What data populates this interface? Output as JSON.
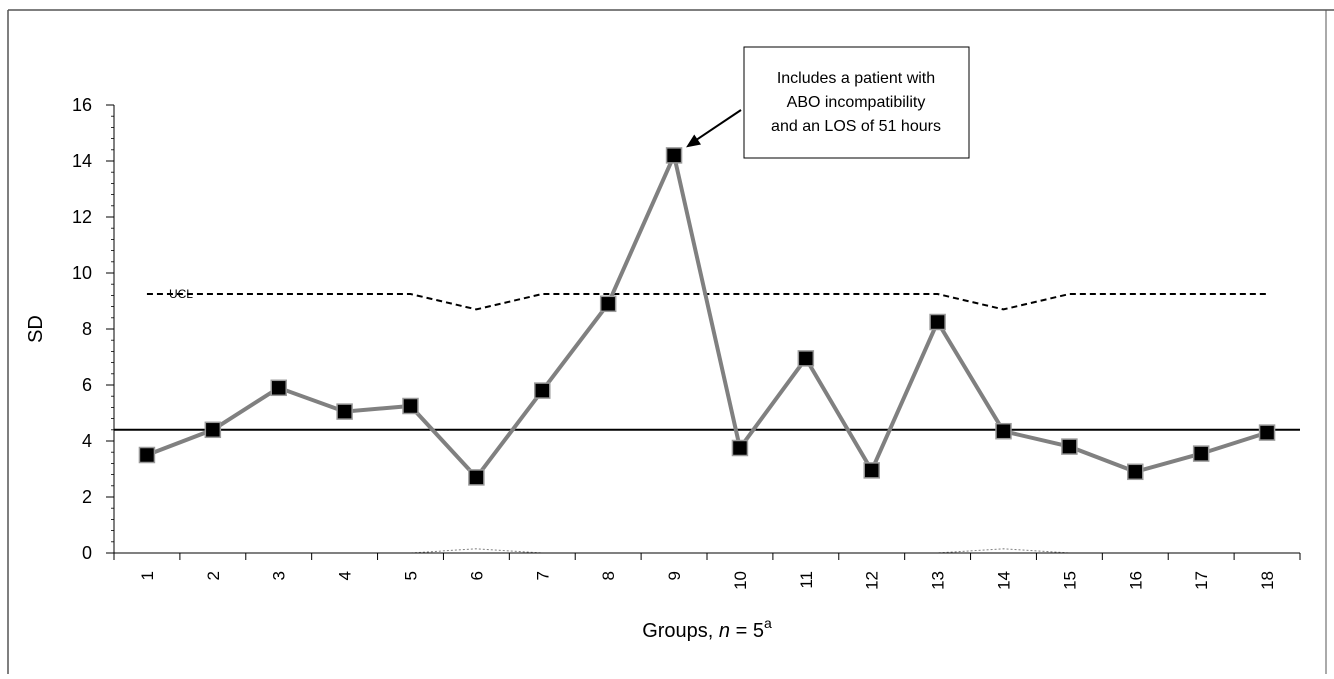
{
  "chart_data": {
    "type": "line",
    "ylabel": "SD",
    "xlabel": {
      "prefix": "Groups, ",
      "italic": "n",
      "middle": " = 5",
      "superscript": "a"
    },
    "ylim": [
      0,
      16
    ],
    "y_ticks": [
      0,
      2,
      4,
      6,
      8,
      10,
      12,
      14,
      16
    ],
    "categories": [
      "1",
      "2",
      "3",
      "4",
      "5",
      "6",
      "7",
      "8",
      "9",
      "10",
      "11",
      "12",
      "13",
      "14",
      "15",
      "16",
      "17",
      "18"
    ],
    "series": [
      {
        "values": [
          3.5,
          4.4,
          5.9,
          5.05,
          5.25,
          2.7,
          5.8,
          8.9,
          14.2,
          3.75,
          6.95,
          2.95,
          8.25,
          4.35,
          3.8,
          2.9,
          3.55,
          4.3
        ]
      }
    ],
    "center_line": 4.4,
    "ucl": {
      "label": "UCL",
      "values": [
        9.25,
        9.25,
        9.25,
        9.25,
        9.25,
        8.7,
        9.25,
        9.25,
        9.25,
        9.25,
        9.25,
        9.25,
        9.25,
        8.7,
        9.25,
        9.25,
        9.25,
        9.25
      ]
    },
    "lcl": {
      "values": [
        0,
        0,
        0,
        0,
        0,
        0.15,
        0,
        0,
        0,
        0,
        0,
        0,
        0,
        0.15,
        0,
        0,
        0,
        0
      ]
    },
    "annotation": {
      "lines": [
        "Includes a patient with",
        "ABO incompatibility",
        "and an LOS of 51 hours"
      ],
      "points_to_category": "9"
    },
    "grid": false,
    "legend": "none",
    "colors": {
      "data_line": "#808080",
      "markers": "#000000",
      "center_line": "#000000",
      "ucl_line": "#000000",
      "lcl_line": "#808080"
    }
  }
}
